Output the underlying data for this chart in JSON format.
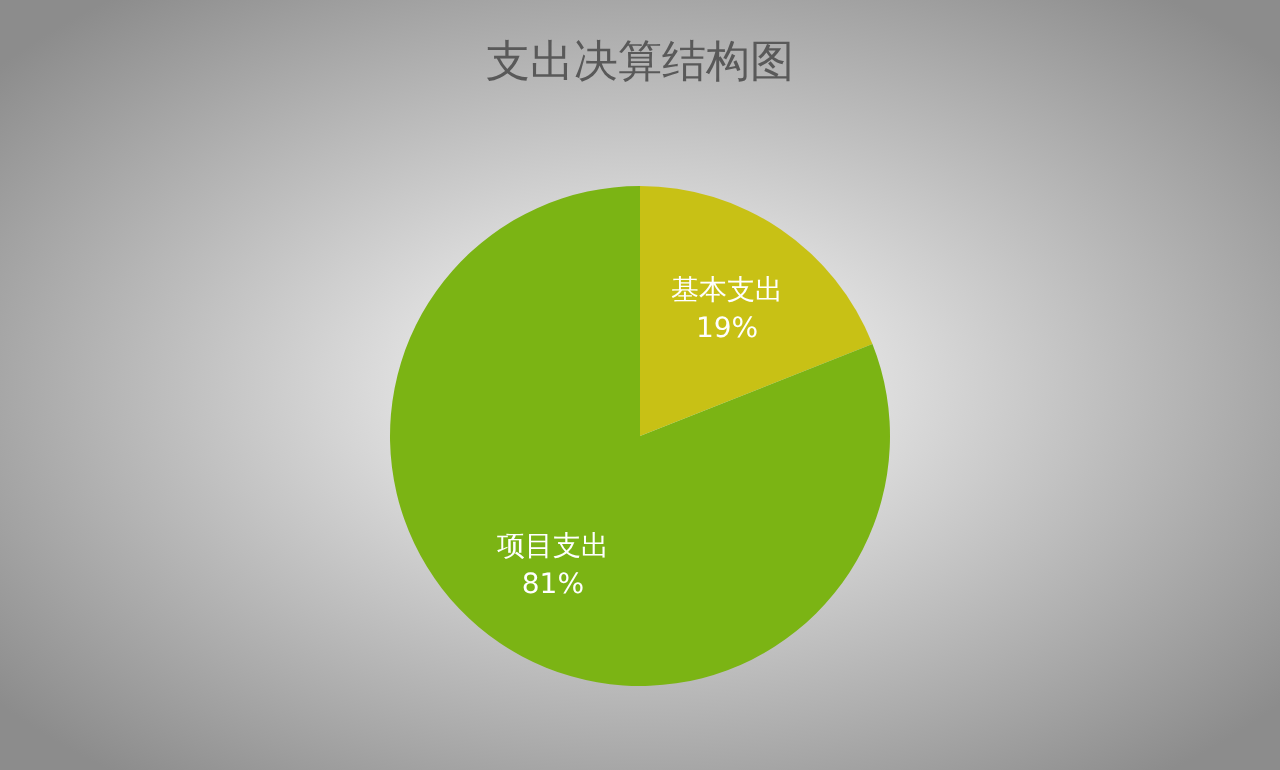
{
  "chart_data": {
    "type": "pie",
    "title": "支出决算结构图",
    "categories": [
      "基本支出",
      "项目支出"
    ],
    "values": [
      19,
      81
    ],
    "value_labels": [
      "19%",
      "81%"
    ],
    "colors": [
      "#c8c115",
      "#7bb414"
    ]
  }
}
